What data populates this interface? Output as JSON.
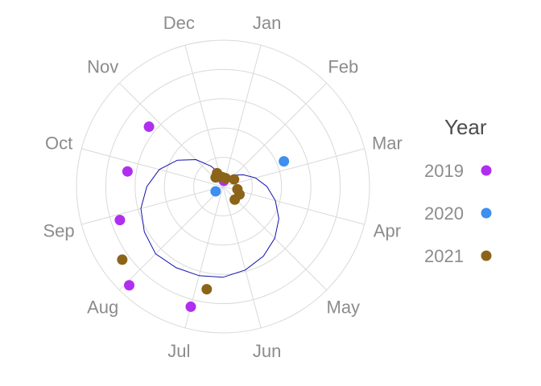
{
  "chart_data": {
    "type": "scatter",
    "coord": "polar",
    "title": "",
    "months": [
      "Jan",
      "Feb",
      "Mar",
      "Apr",
      "May",
      "Jun",
      "Jul",
      "Aug",
      "Sep",
      "Oct",
      "Nov",
      "Dec"
    ],
    "r_max": 10,
    "rings": [
      2,
      4,
      6,
      8,
      10
    ],
    "grid": true,
    "legend": {
      "title": "Year",
      "position": "right"
    },
    "series": [
      {
        "name": "2019",
        "color": "#b02ef0",
        "points": [
          {
            "angle": 0.26,
            "r": 0.4
          },
          {
            "angle": 6.5,
            "r": 8.5
          },
          {
            "angle": 7.45,
            "r": 9.3
          },
          {
            "angle": 8.4,
            "r": 7.4
          },
          {
            "angle": 9.3,
            "r": 6.6
          },
          {
            "angle": 10.3,
            "r": 6.5
          }
        ]
      },
      {
        "name": "2020",
        "color": "#3d8ff0",
        "points": [
          {
            "angle": 2.25,
            "r": 4.5
          },
          {
            "angle": 7.9,
            "r": 0.6
          }
        ]
      },
      {
        "name": "2021",
        "color": "#8b6419",
        "points": [
          {
            "angle": 0.6,
            "r": 0.6
          },
          {
            "angle": 1.9,
            "r": 0.9
          },
          {
            "angle": 3.35,
            "r": 1.0
          },
          {
            "angle": 3.85,
            "r": 1.25
          },
          {
            "angle": 4.6,
            "r": 1.2
          },
          {
            "angle": 6.3,
            "r": 7.1
          },
          {
            "angle": 7.8,
            "r": 8.5
          },
          {
            "angle": 10.7,
            "r": 0.8
          },
          {
            "angle": 11.2,
            "r": 1.0
          },
          {
            "angle": 11.85,
            "r": 0.65
          }
        ]
      }
    ],
    "trend_line": {
      "color": "#1010b0",
      "points": [
        {
          "angle": 0.0,
          "r": 0.3
        },
        {
          "angle": 0.5,
          "r": 0.5
        },
        {
          "angle": 1.0,
          "r": 0.7
        },
        {
          "angle": 1.5,
          "r": 1.1
        },
        {
          "angle": 2.0,
          "r": 1.6
        },
        {
          "angle": 2.5,
          "r": 2.3
        },
        {
          "angle": 3.0,
          "r": 3.0
        },
        {
          "angle": 3.5,
          "r": 3.7
        },
        {
          "angle": 4.0,
          "r": 4.4
        },
        {
          "angle": 4.5,
          "r": 5.0
        },
        {
          "angle": 5.0,
          "r": 5.5
        },
        {
          "angle": 5.5,
          "r": 5.9
        },
        {
          "angle": 6.0,
          "r": 6.2
        },
        {
          "angle": 6.5,
          "r": 6.3
        },
        {
          "angle": 7.0,
          "r": 6.4
        },
        {
          "angle": 7.5,
          "r": 6.5
        },
        {
          "angle": 8.0,
          "r": 6.2
        },
        {
          "angle": 8.5,
          "r": 5.8
        },
        {
          "angle": 9.0,
          "r": 5.2
        },
        {
          "angle": 9.5,
          "r": 4.5
        },
        {
          "angle": 10.0,
          "r": 3.6
        },
        {
          "angle": 10.5,
          "r": 2.6
        },
        {
          "angle": 11.0,
          "r": 1.6
        },
        {
          "angle": 11.5,
          "r": 0.9
        },
        {
          "angle": 12.0,
          "r": 0.3
        }
      ]
    }
  }
}
